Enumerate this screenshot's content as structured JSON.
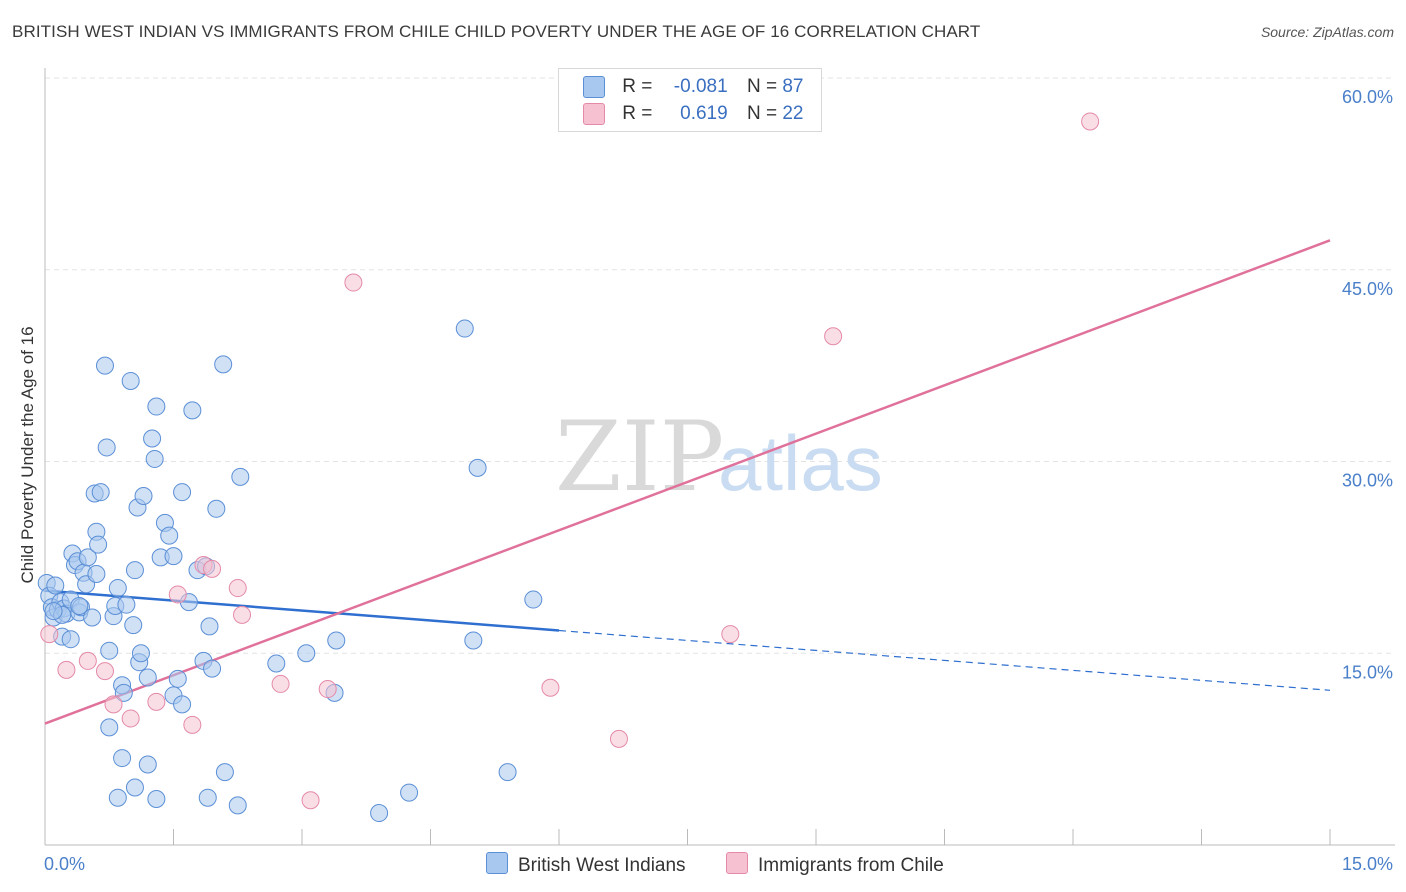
{
  "title": "BRITISH WEST INDIAN VS IMMIGRANTS FROM CHILE CHILD POVERTY UNDER THE AGE OF 16 CORRELATION CHART",
  "source": "Source: ZipAtlas.com",
  "watermark": {
    "part1": "ZIP",
    "part2": "atlas"
  },
  "colors": {
    "blue_fill": "#a9c8ef",
    "blue_stroke": "#5b8fd6",
    "blue_line": "#2f6fd0",
    "pink_fill": "#f6c2d2",
    "pink_stroke": "#e48aa8",
    "pink_line": "#e0719a",
    "grid": "#e3e3e3",
    "tick_text": "#4a7fc9"
  },
  "legend": {
    "rows": [
      {
        "r_label": "R =",
        "r_value": "-0.081",
        "n_label": "N =",
        "n_value": "87"
      },
      {
        "r_label": "R =",
        "r_value": "0.619",
        "n_label": "N =",
        "n_value": "22"
      }
    ],
    "bottom": [
      "British West Indians",
      "Immigrants from Chile"
    ]
  },
  "chart_data": {
    "type": "scatter",
    "title": "BRITISH WEST INDIAN VS IMMIGRANTS FROM CHILE CHILD POVERTY UNDER THE AGE OF 16 CORRELATION CHART",
    "xlabel": "",
    "ylabel": "Child Poverty Under the Age of 16",
    "xlim": [
      0,
      15
    ],
    "ylim": [
      0,
      60
    ],
    "x_tick_labels": [
      "0.0%",
      "15.0%"
    ],
    "y_ticks": [
      15,
      30,
      45,
      60
    ],
    "y_tick_labels": [
      "15.0%",
      "30.0%",
      "45.0%",
      "60.0%"
    ],
    "grid": true,
    "legend_position": "top-center",
    "series": [
      {
        "name": "British West Indians",
        "R": -0.081,
        "N": 87,
        "trend": {
          "x0": 0.0,
          "y0": 19.9,
          "x1": 15.0,
          "y1": 12.1,
          "solid_until_x": 6.0
        },
        "points": [
          [
            0.02,
            20.5
          ],
          [
            0.05,
            19.5
          ],
          [
            0.08,
            18.6
          ],
          [
            0.1,
            17.8
          ],
          [
            0.12,
            20.3
          ],
          [
            0.15,
            18.4
          ],
          [
            0.18,
            19.0
          ],
          [
            0.2,
            16.3
          ],
          [
            0.22,
            18.5
          ],
          [
            0.25,
            18.1
          ],
          [
            0.3,
            19.2
          ],
          [
            0.32,
            22.8
          ],
          [
            0.35,
            21.9
          ],
          [
            0.38,
            22.2
          ],
          [
            0.4,
            18.2
          ],
          [
            0.42,
            18.6
          ],
          [
            0.45,
            21.3
          ],
          [
            0.48,
            20.4
          ],
          [
            0.5,
            22.5
          ],
          [
            0.55,
            17.8
          ],
          [
            0.58,
            27.5
          ],
          [
            0.6,
            24.5
          ],
          [
            0.62,
            23.5
          ],
          [
            0.65,
            27.6
          ],
          [
            0.7,
            37.5
          ],
          [
            0.72,
            31.1
          ],
          [
            0.75,
            15.2
          ],
          [
            0.8,
            17.9
          ],
          [
            0.82,
            18.7
          ],
          [
            0.85,
            20.1
          ],
          [
            0.9,
            12.5
          ],
          [
            0.92,
            11.9
          ],
          [
            0.95,
            18.8
          ],
          [
            1.0,
            36.3
          ],
          [
            1.03,
            17.2
          ],
          [
            1.05,
            21.5
          ],
          [
            1.08,
            26.4
          ],
          [
            1.1,
            14.3
          ],
          [
            1.12,
            15.0
          ],
          [
            1.15,
            27.3
          ],
          [
            1.2,
            13.1
          ],
          [
            1.25,
            31.8
          ],
          [
            1.28,
            30.2
          ],
          [
            1.3,
            34.3
          ],
          [
            1.35,
            22.5
          ],
          [
            1.4,
            25.2
          ],
          [
            1.45,
            24.2
          ],
          [
            1.5,
            22.6
          ],
          [
            1.55,
            13.0
          ],
          [
            1.6,
            27.6
          ],
          [
            1.68,
            19.0
          ],
          [
            1.72,
            34.0
          ],
          [
            1.78,
            21.5
          ],
          [
            1.85,
            14.4
          ],
          [
            1.88,
            21.8
          ],
          [
            1.92,
            17.1
          ],
          [
            1.95,
            13.8
          ],
          [
            2.0,
            26.3
          ],
          [
            2.08,
            37.6
          ],
          [
            2.28,
            28.8
          ],
          [
            2.7,
            14.2
          ],
          [
            3.05,
            15.0
          ],
          [
            3.4,
            16.0
          ],
          [
            3.38,
            11.9
          ],
          [
            4.9,
            40.4
          ],
          [
            5.05,
            29.5
          ],
          [
            5.0,
            16.0
          ],
          [
            5.7,
            19.2
          ],
          [
            0.9,
            6.8
          ],
          [
            1.2,
            6.3
          ],
          [
            0.75,
            9.2
          ],
          [
            2.1,
            5.7
          ],
          [
            1.05,
            4.5
          ],
          [
            0.85,
            3.7
          ],
          [
            1.3,
            3.6
          ],
          [
            1.9,
            3.7
          ],
          [
            2.25,
            3.1
          ],
          [
            3.9,
            2.5
          ],
          [
            4.25,
            4.1
          ],
          [
            5.4,
            5.7
          ],
          [
            0.2,
            18.0
          ],
          [
            0.1,
            18.3
          ],
          [
            0.3,
            16.1
          ],
          [
            0.4,
            18.7
          ],
          [
            0.6,
            21.2
          ],
          [
            1.5,
            11.7
          ],
          [
            1.6,
            11.0
          ]
        ]
      },
      {
        "name": "Immigrants from Chile",
        "R": 0.619,
        "N": 22,
        "trend": {
          "x0": 0.0,
          "y0": 9.5,
          "x1": 15.0,
          "y1": 47.3
        },
        "points": [
          [
            0.05,
            16.5
          ],
          [
            0.25,
            13.7
          ],
          [
            0.5,
            14.4
          ],
          [
            0.7,
            13.6
          ],
          [
            0.8,
            11.0
          ],
          [
            1.0,
            9.9
          ],
          [
            1.3,
            11.2
          ],
          [
            1.55,
            19.6
          ],
          [
            1.72,
            9.4
          ],
          [
            1.85,
            21.9
          ],
          [
            1.95,
            21.6
          ],
          [
            2.25,
            20.1
          ],
          [
            2.3,
            18.0
          ],
          [
            2.75,
            12.6
          ],
          [
            3.1,
            3.5
          ],
          [
            3.3,
            12.2
          ],
          [
            3.6,
            44.0
          ],
          [
            5.9,
            12.3
          ],
          [
            6.7,
            8.3
          ],
          [
            8.0,
            16.5
          ],
          [
            9.2,
            39.8
          ],
          [
            12.2,
            56.6
          ]
        ]
      }
    ]
  }
}
